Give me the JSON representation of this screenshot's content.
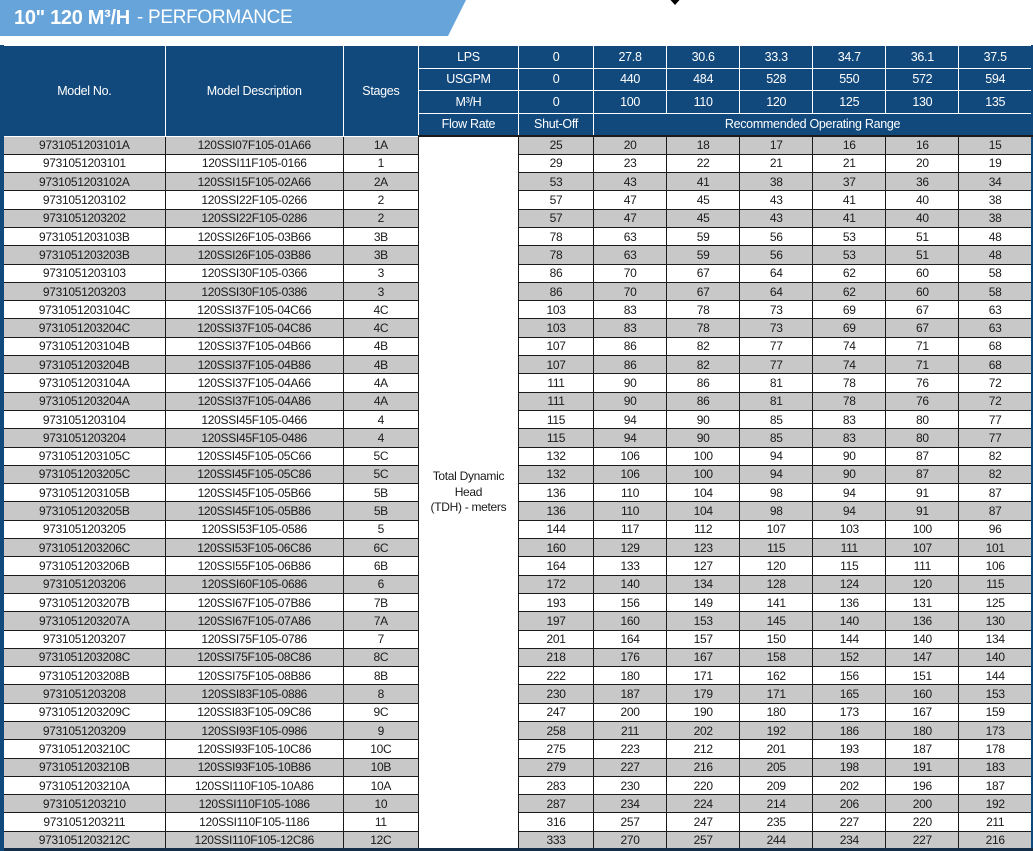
{
  "header": {
    "title_strong": "10\" 120 M³/H",
    "title_rest": "- PERFORMANCE"
  },
  "colors": {
    "banner_blue": "#66a4da",
    "header_navy": "#11497d",
    "row_gray": "#c8c8c8",
    "row_white": "#ffffff",
    "border_dark": "#1b1b1b"
  },
  "table": {
    "columns": [
      "Model No.",
      "Model Description",
      "Stages"
    ],
    "flow_rows": [
      {
        "label": "LPS",
        "values": [
          "0",
          "27.8",
          "30.6",
          "33.3",
          "34.7",
          "36.1",
          "37.5"
        ]
      },
      {
        "label": "USGPM",
        "values": [
          "0",
          "440",
          "484",
          "528",
          "550",
          "572",
          "594"
        ]
      },
      {
        "label": "M³/H",
        "values": [
          "0",
          "100",
          "110",
          "120",
          "125",
          "130",
          "135"
        ]
      }
    ],
    "flow_rate_label": "Flow Rate",
    "shutoff_label": "Shut-Off",
    "range_label": "Recommended Operating Range",
    "tdh_label": "Total Dynamic Head (TDH) - meters",
    "rows": [
      {
        "model": "9731051203101A",
        "description": "120SSI07F105-01A66",
        "stages": "1A",
        "values": [
          25,
          20,
          18,
          17,
          16,
          16,
          15
        ]
      },
      {
        "model": "9731051203101",
        "description": "120SSI11F105-0166",
        "stages": "1",
        "values": [
          29,
          23,
          22,
          21,
          21,
          20,
          19
        ]
      },
      {
        "model": "9731051203102A",
        "description": "120SSI15F105-02A66",
        "stages": "2A",
        "values": [
          53,
          43,
          41,
          38,
          37,
          36,
          34
        ]
      },
      {
        "model": "9731051203102",
        "description": "120SSI22F105-0266",
        "stages": "2",
        "values": [
          57,
          47,
          45,
          43,
          41,
          40,
          38
        ]
      },
      {
        "model": "9731051203202",
        "description": "120SSI22F105-0286",
        "stages": "2",
        "values": [
          57,
          47,
          45,
          43,
          41,
          40,
          38
        ]
      },
      {
        "model": "9731051203103B",
        "description": "120SSI26F105-03B66",
        "stages": "3B",
        "values": [
          78,
          63,
          59,
          56,
          53,
          51,
          48
        ]
      },
      {
        "model": "9731051203203B",
        "description": "120SSI26F105-03B86",
        "stages": "3B",
        "values": [
          78,
          63,
          59,
          56,
          53,
          51,
          48
        ]
      },
      {
        "model": "9731051203103",
        "description": "120SSI30F105-0366",
        "stages": "3",
        "values": [
          86,
          70,
          67,
          64,
          62,
          60,
          58
        ]
      },
      {
        "model": "9731051203203",
        "description": "120SSI30F105-0386",
        "stages": "3",
        "values": [
          86,
          70,
          67,
          64,
          62,
          60,
          58
        ]
      },
      {
        "model": "9731051203104C",
        "description": "120SSI37F105-04C66",
        "stages": "4C",
        "values": [
          103,
          83,
          78,
          73,
          69,
          67,
          63
        ]
      },
      {
        "model": "9731051203204C",
        "description": "120SSI37F105-04C86",
        "stages": "4C",
        "values": [
          103,
          83,
          78,
          73,
          69,
          67,
          63
        ]
      },
      {
        "model": "9731051203104B",
        "description": "120SSI37F105-04B66",
        "stages": "4B",
        "values": [
          107,
          86,
          82,
          77,
          74,
          71,
          68
        ]
      },
      {
        "model": "9731051203204B",
        "description": "120SSI37F105-04B86",
        "stages": "4B",
        "values": [
          107,
          86,
          82,
          77,
          74,
          71,
          68
        ]
      },
      {
        "model": "9731051203104A",
        "description": "120SSI37F105-04A66",
        "stages": "4A",
        "values": [
          111,
          90,
          86,
          81,
          78,
          76,
          72
        ]
      },
      {
        "model": "9731051203204A",
        "description": "120SSI37F105-04A86",
        "stages": "4A",
        "values": [
          111,
          90,
          86,
          81,
          78,
          76,
          72
        ]
      },
      {
        "model": "9731051203104",
        "description": "120SSI45F105-0466",
        "stages": "4",
        "values": [
          115,
          94,
          90,
          85,
          83,
          80,
          77
        ]
      },
      {
        "model": "9731051203204",
        "description": "120SSI45F105-0486",
        "stages": "4",
        "values": [
          115,
          94,
          90,
          85,
          83,
          80,
          77
        ]
      },
      {
        "model": "9731051203105C",
        "description": "120SSI45F105-05C66",
        "stages": "5C",
        "values": [
          132,
          106,
          100,
          94,
          90,
          87,
          82
        ]
      },
      {
        "model": "9731051203205C",
        "description": "120SSI45F105-05C86",
        "stages": "5C",
        "values": [
          132,
          106,
          100,
          94,
          90,
          87,
          82
        ]
      },
      {
        "model": "9731051203105B",
        "description": "120SSI45F105-05B66",
        "stages": "5B",
        "values": [
          136,
          110,
          104,
          98,
          94,
          91,
          87
        ]
      },
      {
        "model": "9731051203205B",
        "description": "120SSI45F105-05B86",
        "stages": "5B",
        "values": [
          136,
          110,
          104,
          98,
          94,
          91,
          87
        ]
      },
      {
        "model": "9731051203205",
        "description": "120SSI53F105-0586",
        "stages": "5",
        "values": [
          144,
          117,
          112,
          107,
          103,
          100,
          96
        ]
      },
      {
        "model": "9731051203206C",
        "description": "120SSI53F105-06C86",
        "stages": "6C",
        "values": [
          160,
          129,
          123,
          115,
          111,
          107,
          101
        ]
      },
      {
        "model": "9731051203206B",
        "description": "120SSI55F105-06B86",
        "stages": "6B",
        "values": [
          164,
          133,
          127,
          120,
          115,
          111,
          106
        ]
      },
      {
        "model": "9731051203206",
        "description": "120SSI60F105-0686",
        "stages": "6",
        "values": [
          172,
          140,
          134,
          128,
          124,
          120,
          115
        ]
      },
      {
        "model": "9731051203207B",
        "description": "120SSI67F105-07B86",
        "stages": "7B",
        "values": [
          193,
          156,
          149,
          141,
          136,
          131,
          125
        ]
      },
      {
        "model": "9731051203207A",
        "description": "120SSI67F105-07A86",
        "stages": "7A",
        "values": [
          197,
          160,
          153,
          145,
          140,
          136,
          130
        ]
      },
      {
        "model": "9731051203207",
        "description": "120SSI75F105-0786",
        "stages": "7",
        "values": [
          201,
          164,
          157,
          150,
          144,
          140,
          134
        ]
      },
      {
        "model": "9731051203208C",
        "description": "120SSI75F105-08C86",
        "stages": "8C",
        "values": [
          218,
          176,
          167,
          158,
          152,
          147,
          140
        ]
      },
      {
        "model": "9731051203208B",
        "description": "120SSI75F105-08B86",
        "stages": "8B",
        "values": [
          222,
          180,
          171,
          162,
          156,
          151,
          144
        ]
      },
      {
        "model": "9731051203208",
        "description": "120SSI83F105-0886",
        "stages": "8",
        "values": [
          230,
          187,
          179,
          171,
          165,
          160,
          153
        ]
      },
      {
        "model": "9731051203209C",
        "description": "120SSI83F105-09C86",
        "stages": "9C",
        "values": [
          247,
          200,
          190,
          180,
          173,
          167,
          159
        ]
      },
      {
        "model": "9731051203209",
        "description": "120SSI93F105-0986",
        "stages": "9",
        "values": [
          258,
          211,
          202,
          192,
          186,
          180,
          173
        ]
      },
      {
        "model": "9731051203210C",
        "description": "120SSI93F105-10C86",
        "stages": "10C",
        "values": [
          275,
          223,
          212,
          201,
          193,
          187,
          178
        ]
      },
      {
        "model": "9731051203210B",
        "description": "120SSI93F105-10B86",
        "stages": "10B",
        "values": [
          279,
          227,
          216,
          205,
          198,
          191,
          183
        ]
      },
      {
        "model": "9731051203210A",
        "description": "120SSI110F105-10A86",
        "stages": "10A",
        "values": [
          283,
          230,
          220,
          209,
          202,
          196,
          187
        ]
      },
      {
        "model": "9731051203210",
        "description": "120SSI110F105-1086",
        "stages": "10",
        "values": [
          287,
          234,
          224,
          214,
          206,
          200,
          192
        ]
      },
      {
        "model": "9731051203211",
        "description": "120SSI110F105-1186",
        "stages": "11",
        "values": [
          316,
          257,
          247,
          235,
          227,
          220,
          211
        ]
      },
      {
        "model": "9731051203212C",
        "description": "120SSI110F105-12C86",
        "stages": "12C",
        "values": [
          333,
          270,
          257,
          244,
          234,
          227,
          216
        ]
      }
    ]
  }
}
